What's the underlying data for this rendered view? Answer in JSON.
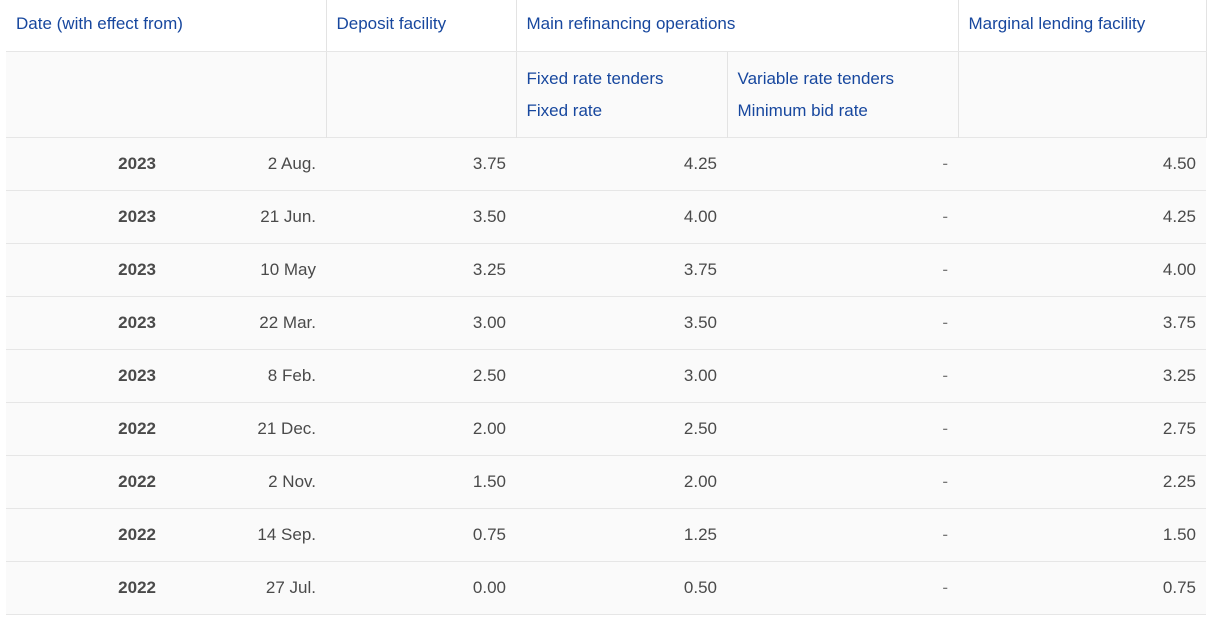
{
  "header": {
    "date_label": "Date (with effect from)",
    "deposit_label": "Deposit facility",
    "mro_label": "Main refinancing operations",
    "mlf_label": "Marginal lending facility",
    "fixed_tenders_label": "Fixed rate tenders",
    "fixed_rate_label": "Fixed rate",
    "variable_tenders_label": "Variable rate tenders",
    "min_bid_label": "Minimum bid rate"
  },
  "rows": [
    {
      "year": "2023",
      "date": "2 Aug.",
      "deposit": "3.75",
      "fixed": "4.25",
      "variable": "-",
      "marginal": "4.50"
    },
    {
      "year": "2023",
      "date": "21 Jun.",
      "deposit": "3.50",
      "fixed": "4.00",
      "variable": "-",
      "marginal": "4.25"
    },
    {
      "year": "2023",
      "date": "10 May",
      "deposit": "3.25",
      "fixed": "3.75",
      "variable": "-",
      "marginal": "4.00"
    },
    {
      "year": "2023",
      "date": "22 Mar.",
      "deposit": "3.00",
      "fixed": "3.50",
      "variable": "-",
      "marginal": "3.75"
    },
    {
      "year": "2023",
      "date": "8 Feb.",
      "deposit": "2.50",
      "fixed": "3.00",
      "variable": "-",
      "marginal": "3.25"
    },
    {
      "year": "2022",
      "date": "21 Dec.",
      "deposit": "2.00",
      "fixed": "2.50",
      "variable": "-",
      "marginal": "2.75"
    },
    {
      "year": "2022",
      "date": "2 Nov.",
      "deposit": "1.50",
      "fixed": "2.00",
      "variable": "-",
      "marginal": "2.25"
    },
    {
      "year": "2022",
      "date": "14 Sep.",
      "deposit": "0.75",
      "fixed": "1.25",
      "variable": "-",
      "marginal": "1.50"
    },
    {
      "year": "2022",
      "date": "27 Jul.",
      "deposit": "0.00",
      "fixed": "0.50",
      "variable": "-",
      "marginal": "0.75"
    }
  ],
  "colors": {
    "header_text": "#17479e",
    "body_text": "#4a4a4a",
    "row_background": "#fafafa",
    "border": "#e6e6e6"
  }
}
